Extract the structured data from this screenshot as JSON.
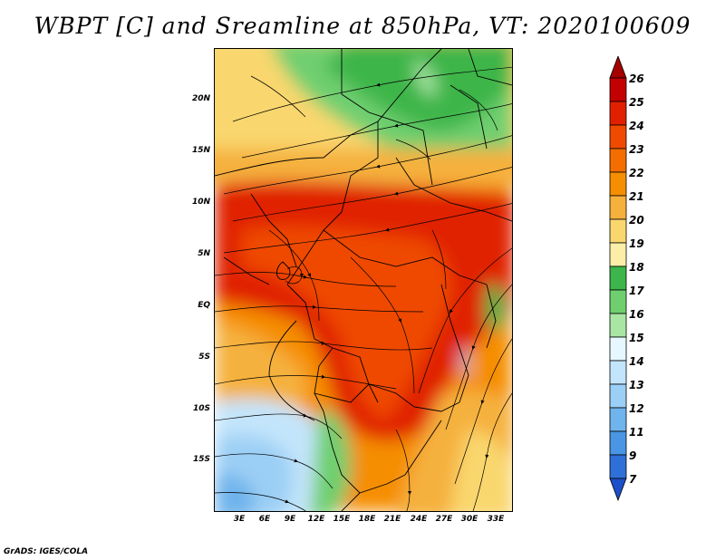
{
  "title": "WBPT [C] and Sreamline at 850hPa, VT: 2020100609",
  "lat_labels": [
    "20N",
    "15N",
    "10N",
    "5N",
    "EQ",
    "5S",
    "10S",
    "15S"
  ],
  "lon_labels": [
    "3E",
    "6E",
    "9E",
    "12E",
    "15E",
    "18E",
    "21E",
    "24E",
    "27E",
    "30E",
    "33E"
  ],
  "colorbar": {
    "labels": [
      "26",
      "25",
      "24",
      "23",
      "22",
      "21",
      "20",
      "19",
      "18",
      "17",
      "16",
      "15",
      "14",
      "13",
      "12",
      "11",
      "9",
      "7"
    ],
    "colors": [
      "#a50000",
      "#c30000",
      "#e02000",
      "#ef4a00",
      "#f46d00",
      "#f58e00",
      "#f5b13c",
      "#f9d76e",
      "#fbefa8",
      "#3cb54a",
      "#6fcf6f",
      "#a9e6a4",
      "#e6f7ff",
      "#c3e5fb",
      "#9ccff5",
      "#6fb4ec",
      "#4a95e4",
      "#2e70d8",
      "#1c4fc8"
    ]
  },
  "credit": "GrADS: IGES/COLA"
}
